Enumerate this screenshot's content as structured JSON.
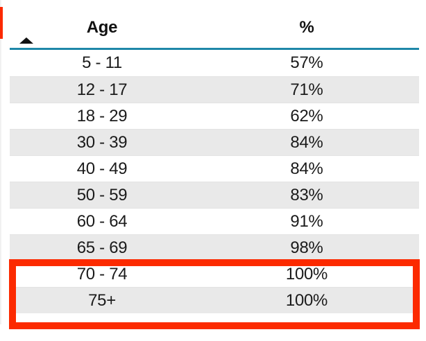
{
  "visual": {
    "type": "table",
    "header": {
      "age_label": "Age",
      "percent_label": "%",
      "sort": {
        "column": "Age",
        "direction": "ascending"
      }
    },
    "rows": [
      {
        "age": "5 - 11",
        "percent": "57%"
      },
      {
        "age": "12 - 17",
        "percent": "71%"
      },
      {
        "age": "18 - 29",
        "percent": "62%"
      },
      {
        "age": "30 - 39",
        "percent": "84%"
      },
      {
        "age": "40 - 49",
        "percent": "84%"
      },
      {
        "age": "50 - 59",
        "percent": "83%"
      },
      {
        "age": "60 - 64",
        "percent": "91%"
      },
      {
        "age": "65 - 69",
        "percent": "98%"
      },
      {
        "age": "70 - 74",
        "percent": "100%"
      },
      {
        "age": "75+",
        "percent": "100%"
      }
    ]
  },
  "chart_data": {
    "type": "table",
    "columns": [
      "Age",
      "%"
    ],
    "rows": [
      [
        "5 - 11",
        "57%"
      ],
      [
        "12 - 17",
        "71%"
      ],
      [
        "18 - 29",
        "62%"
      ],
      [
        "30 - 39",
        "84%"
      ],
      [
        "40 - 49",
        "84%"
      ],
      [
        "50 - 59",
        "83%"
      ],
      [
        "60 - 64",
        "91%"
      ],
      [
        "65 - 69",
        "98%"
      ],
      [
        "70 - 74",
        "100%"
      ],
      [
        "75+",
        "100%"
      ]
    ]
  },
  "annotation": {
    "type": "red-highlight-box",
    "highlighted_rows": [
      "70 - 74",
      "75+"
    ],
    "color": "#fc2a00"
  },
  "colors": {
    "header_underline_teal": "#1e87a8",
    "alternate_row_gray": "#e9e9e9",
    "annotation_red": "#fc2a00",
    "text": "#1b1b1b"
  }
}
